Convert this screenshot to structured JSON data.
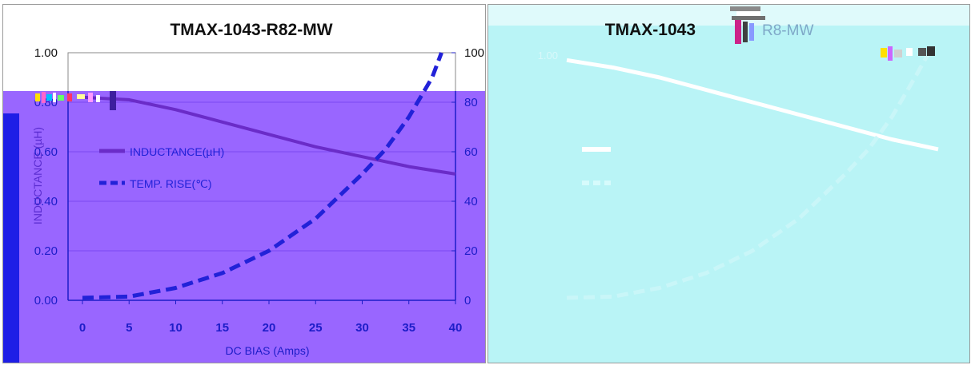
{
  "colors": {
    "left_bg_top": "#ffffff",
    "left_bg_plot": "#9966ff",
    "left_stripe": "#1e1ee6",
    "right_bg": "#b9f4f6",
    "inductance_line": "#6a2cc8",
    "temp_line": "#2222d8",
    "axis_text": "#1d1dc8",
    "gridline": "#7a48f0",
    "right_line": "#ffffff",
    "right_dash": "#c9f6f8"
  },
  "chart_data": [
    {
      "type": "line",
      "title": "TMAX-1043-R82-MW",
      "xlabel": "DC BIAS (Amps)",
      "ylabel": "INDUCTANCE (µH)",
      "y2label": "",
      "xlim": [
        0,
        40
      ],
      "ylim": [
        0,
        1.0
      ],
      "y2lim": [
        0,
        100
      ],
      "x_ticks": [
        "0",
        "5",
        "10",
        "15",
        "20",
        "25",
        "30",
        "35",
        "40"
      ],
      "y_ticks": [
        "0.00",
        "0.20",
        "0.40",
        "0.60",
        "0.80",
        "1.00"
      ],
      "y2_ticks": [
        "0",
        "20",
        "40",
        "60",
        "80",
        "100"
      ],
      "grid": true,
      "legend_position": "center-left",
      "series": [
        {
          "name": "INDUCTANCE(µH)",
          "axis": "left",
          "style": "solid",
          "x": [
            0,
            5,
            10,
            15,
            20,
            25,
            30,
            35,
            40
          ],
          "values": [
            0.82,
            0.81,
            0.77,
            0.72,
            0.67,
            0.62,
            0.58,
            0.54,
            0.51
          ]
        },
        {
          "name": "TEMP. RISE(℃)",
          "axis": "right",
          "style": "dashed",
          "x": [
            0,
            5,
            10,
            15,
            20,
            25,
            30,
            32.5,
            35,
            37.5,
            38.5
          ],
          "values": [
            1,
            1.5,
            5,
            11,
            20,
            33,
            51,
            61,
            74,
            90,
            100
          ]
        }
      ]
    },
    {
      "type": "line",
      "title": "TMAX-1043",
      "title_suffix": "R8-MW",
      "y_top_label": "1.00",
      "xlim": [
        0,
        40
      ],
      "ylim": [
        0,
        1.0
      ],
      "y2lim": [
        0,
        100
      ],
      "grid": false,
      "series": [
        {
          "style": "solid",
          "axis": "left",
          "x": [
            0,
            5,
            10,
            15,
            20,
            25,
            30,
            35,
            40
          ],
          "values": [
            0.97,
            0.94,
            0.9,
            0.85,
            0.8,
            0.75,
            0.7,
            0.65,
            0.61
          ]
        },
        {
          "style": "dashed",
          "axis": "right",
          "x": [
            0,
            5,
            10,
            15,
            20,
            25,
            30,
            32.5,
            35,
            37.5,
            39
          ],
          "values": [
            1,
            1.5,
            5,
            11,
            20,
            33,
            51,
            61,
            74,
            90,
            100
          ]
        }
      ]
    }
  ]
}
